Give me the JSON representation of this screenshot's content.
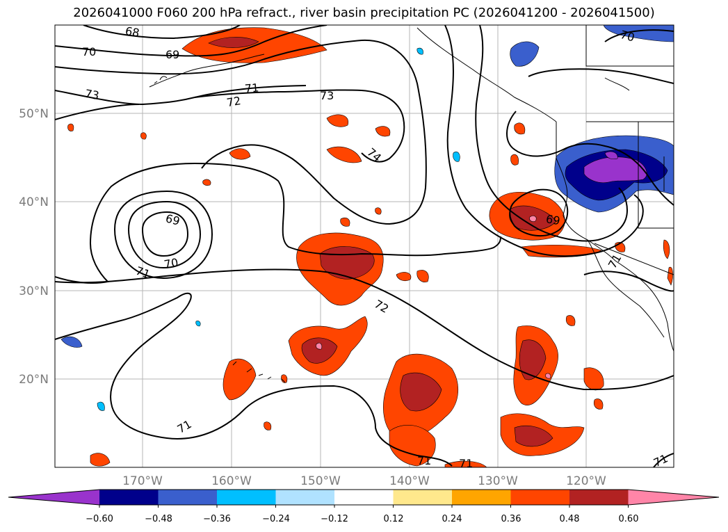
{
  "title": "2026041000 F060 200 hPa refract., river basin precipitation PC (2026041200 - 2026041500)",
  "lat_labels": [
    "50°N",
    "40°N",
    "30°N",
    "20°N"
  ],
  "lon_labels": [
    "170°W",
    "160°W",
    "150°W",
    "140°W",
    "130°W",
    "120°W"
  ],
  "contour_labels": [
    "68",
    "70",
    "69",
    "73",
    "71",
    "72",
    "73",
    "74",
    "69",
    "70",
    "71",
    "69",
    "72",
    "71",
    "71",
    "71",
    "70",
    "71",
    "71"
  ],
  "colorbar": {
    "tick_labels": [
      "−0.60",
      "−0.48",
      "−0.36",
      "−0.24",
      "−0.12",
      "0.12",
      "0.24",
      "0.36",
      "0.48",
      "0.60"
    ],
    "colors": [
      "#9933cc",
      "#00008b",
      "#3a5fcd",
      "#00bfff",
      "#b0e2ff",
      "#ffffff",
      "#ffe88c",
      "#ffa500",
      "#ff4500",
      "#b22222",
      "#ff85a8"
    ]
  }
}
